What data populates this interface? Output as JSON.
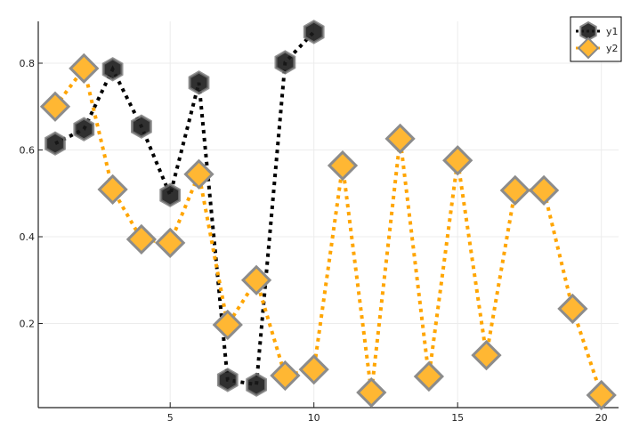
{
  "chart_data": {
    "type": "line",
    "title": "",
    "xlabel": "",
    "ylabel": "",
    "xlim": [
      0.4,
      20.55
    ],
    "ylim": [
      0.006,
      0.895
    ],
    "grid": true,
    "legend_position": "top-right",
    "xticks": [
      5,
      10,
      15,
      20
    ],
    "xtick_labels": [
      "5",
      "10",
      "15",
      "20"
    ],
    "yticks": [
      0.2,
      0.4,
      0.6,
      0.8
    ],
    "ytick_labels": [
      "0.2",
      "0.4",
      "0.6",
      "0.8"
    ],
    "series": [
      {
        "name": "y1",
        "color": "#000000",
        "marker": "hexagon",
        "marker_color": "#1a1a1a",
        "line_style": "dotted",
        "x": [
          1,
          2,
          3,
          4,
          5,
          6,
          7,
          8,
          9,
          10
        ],
        "values": [
          0.615,
          0.648,
          0.786,
          0.654,
          0.496,
          0.755,
          0.07,
          0.059,
          0.802,
          0.872
        ]
      },
      {
        "name": "y2",
        "color": "#FFA500",
        "marker": "diamond",
        "marker_color": "#FFB733",
        "line_style": "dotted",
        "x": [
          1,
          2,
          3,
          4,
          5,
          6,
          7,
          8,
          9,
          10,
          11,
          12,
          13,
          14,
          15,
          16,
          17,
          18,
          19,
          20
        ],
        "values": [
          0.7,
          0.788,
          0.509,
          0.394,
          0.386,
          0.544,
          0.197,
          0.3,
          0.08,
          0.094,
          0.564,
          0.041,
          0.626,
          0.078,
          0.576,
          0.127,
          0.507,
          0.507,
          0.234,
          0.035
        ]
      }
    ]
  },
  "legend": {
    "items": [
      {
        "label": "y1"
      },
      {
        "label": "y2"
      }
    ]
  }
}
